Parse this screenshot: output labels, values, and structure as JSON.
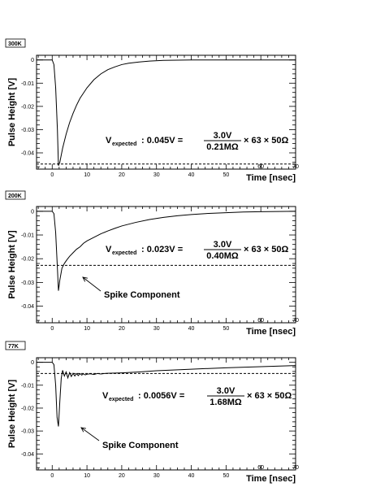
{
  "chart_data": [
    {
      "type": "line",
      "title": "300K",
      "xlabel": "Time [nsec]",
      "ylabel": "Pulse Height [V]",
      "xlim": [
        -4.5,
        70
      ],
      "ylim": [
        -0.047,
        0.002
      ],
      "x_ticks": [
        0,
        10,
        20,
        30,
        40,
        50,
        60,
        70
      ],
      "y_ticks": [
        0,
        -0.01,
        -0.02,
        -0.03,
        -0.04
      ],
      "y_tick_labels": [
        "0",
        "-0.01",
        "-0.02",
        "-0.03",
        "-0.04"
      ],
      "grid": false,
      "series": [
        {
          "x": [
            -4.5,
            0,
            0.5,
            1.0,
            1.5,
            1.8,
            2.2,
            3,
            4,
            5,
            6,
            7,
            8,
            10,
            12,
            14,
            16,
            18,
            20,
            22,
            25,
            28,
            32,
            36,
            40,
            45,
            50,
            60,
            70
          ],
          "y": [
            0,
            0,
            -0.002,
            -0.012,
            -0.03,
            -0.0455,
            -0.044,
            -0.038,
            -0.032,
            -0.027,
            -0.023,
            -0.0195,
            -0.0165,
            -0.012,
            -0.0085,
            -0.006,
            -0.0042,
            -0.003,
            -0.002,
            -0.0014,
            -0.0009,
            -0.0005,
            -0.0002,
            -0.0001,
            0,
            0,
            0,
            0,
            0
          ]
        }
      ],
      "reference_line": {
        "y": -0.0448,
        "style": "dashed"
      },
      "annotation": {
        "lhs_main": "V",
        "lhs_sub": "expected",
        "value": " : 0.045V = ",
        "numerator": "3.0V",
        "denominator": "0.21MΩ",
        "tail": "× 63 × 50Ω"
      }
    },
    {
      "type": "line",
      "title": "200K",
      "xlabel": "Time [nsec]",
      "ylabel": "Pulse Height [V]",
      "xlim": [
        -4.5,
        70
      ],
      "ylim": [
        -0.047,
        0.002
      ],
      "x_ticks": [
        0,
        10,
        20,
        30,
        40,
        50,
        60,
        70
      ],
      "y_ticks": [
        0,
        -0.01,
        -0.02,
        -0.03,
        -0.04
      ],
      "y_tick_labels": [
        "0",
        "-0.01",
        "-0.02",
        "-0.03",
        "-0.04"
      ],
      "grid": false,
      "series": [
        {
          "x": [
            -4.5,
            0,
            0.5,
            1.0,
            1.5,
            1.8,
            2.2,
            2.8,
            3.5,
            4.2,
            5,
            6,
            7,
            8,
            9,
            10,
            12,
            14,
            16,
            18,
            20,
            24,
            28,
            32,
            36,
            40,
            45,
            50,
            55,
            60,
            70
          ],
          "y": [
            0,
            0,
            -0.001,
            -0.009,
            -0.024,
            -0.0335,
            -0.029,
            -0.024,
            -0.022,
            -0.0205,
            -0.019,
            -0.0175,
            -0.016,
            -0.015,
            -0.0135,
            -0.0125,
            -0.011,
            -0.0095,
            -0.0083,
            -0.0072,
            -0.0062,
            -0.0047,
            -0.0035,
            -0.0026,
            -0.0019,
            -0.0014,
            -0.0009,
            -0.0006,
            -0.0003,
            -0.0002,
            0
          ]
        }
      ],
      "reference_line": {
        "y": -0.0228,
        "style": "dashed"
      },
      "annotation": {
        "lhs_main": "V",
        "lhs_sub": "expected",
        "value": " : 0.023V = ",
        "numerator": "3.0V",
        "denominator": "0.40MΩ",
        "tail": "× 63 × 50Ω"
      },
      "callout": "Spike Component"
    },
    {
      "type": "line",
      "title": "77K",
      "xlabel": "Time [nsec]",
      "ylabel": "Pulse Height [V]",
      "xlim": [
        -4.5,
        70
      ],
      "ylim": [
        -0.047,
        0.002
      ],
      "x_ticks": [
        0,
        10,
        20,
        30,
        40,
        50,
        60,
        70
      ],
      "y_ticks": [
        0,
        -0.01,
        -0.02,
        -0.03,
        -0.04
      ],
      "y_tick_labels": [
        "0",
        "-0.01",
        "-0.02",
        "-0.03",
        "-0.04"
      ],
      "grid": false,
      "series": [
        {
          "x": [
            -4.5,
            0,
            0.5,
            1.0,
            1.4,
            1.8,
            2.2,
            2.6,
            3.0,
            3.5,
            4,
            4.5,
            5,
            5.5,
            6,
            6.5,
            7,
            7.5,
            8,
            8.5,
            9,
            9.5,
            10,
            11,
            12,
            13,
            14,
            15,
            16,
            20,
            25,
            30,
            40,
            50,
            60,
            70
          ],
          "y": [
            0,
            0,
            -0.001,
            -0.01,
            -0.024,
            -0.028,
            -0.017,
            -0.007,
            -0.0035,
            -0.006,
            -0.0042,
            -0.0068,
            -0.0045,
            -0.0062,
            -0.0048,
            -0.006,
            -0.0049,
            -0.0058,
            -0.0049,
            -0.0056,
            -0.005,
            -0.0055,
            -0.0052,
            -0.005,
            -0.0053,
            -0.0049,
            -0.0051,
            -0.0049,
            -0.0048,
            -0.0046,
            -0.0042,
            -0.0037,
            -0.003,
            -0.0024,
            -0.0019,
            -0.0014
          ]
        }
      ],
      "reference_line": {
        "y": -0.0049,
        "style": "dashed"
      },
      "annotation": {
        "lhs_main": "V",
        "lhs_sub": "expected",
        "value": " : 0.0056V = ",
        "numerator": "3.0V",
        "denominator": "1.68MΩ",
        "tail": "× 63 × 50Ω"
      },
      "callout": "Spike Component"
    }
  ]
}
